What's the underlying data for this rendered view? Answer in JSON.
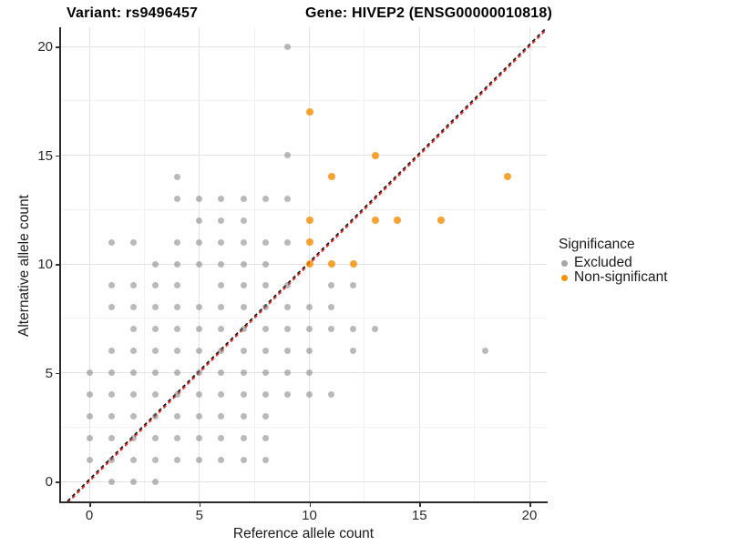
{
  "header": {
    "variant_title": "Variant: rs9496457",
    "gene_title": "Gene: HIVEP2 (ENSG00000010818)"
  },
  "axes": {
    "x": {
      "label": "Reference allele count",
      "ticks": [
        "0",
        "5",
        "10",
        "15",
        "20"
      ],
      "tick_values": [
        0,
        5,
        10,
        15,
        20
      ]
    },
    "y": {
      "label": "Alternative allele count",
      "ticks": [
        "0",
        "5",
        "10",
        "15",
        "20"
      ],
      "tick_values": [
        0,
        5,
        10,
        15,
        20
      ]
    }
  },
  "legend": {
    "title": "Significance",
    "items": [
      {
        "label": "Excluded",
        "color": "#a6a6a6"
      },
      {
        "label": "Non-significant",
        "color": "#f59300"
      }
    ]
  },
  "colors": {
    "excluded_point": "rgba(115,115,115,0.5)",
    "nonsignificant_point": "rgba(245,140,0,0.8)",
    "grid_major": "#e3e3e3",
    "grid_minor": "#f2f2f2",
    "abline_red": "#e03128",
    "abline_black": "#141414"
  },
  "chart_data": {
    "type": "scatter",
    "title_left": "Variant: rs9496457",
    "title_right": "Gene: HIVEP2 (ENSG00000010818)",
    "xlabel": "Reference allele count",
    "ylabel": "Alternative allele count",
    "xlim": [
      -1.33,
      20.8
    ],
    "ylim": [
      -0.95,
      20.9
    ],
    "grid": {
      "major": [
        0,
        5,
        10,
        15,
        20
      ],
      "minor": [
        2.5,
        7.5,
        12.5,
        17.5
      ]
    },
    "reference_line": {
      "type": "identity",
      "slope": 1,
      "intercept": 0,
      "style": "dashed"
    },
    "legend_position": "right",
    "series": [
      {
        "name": "Excluded",
        "points": [
          [
            1,
            0
          ],
          [
            2,
            0
          ],
          [
            3,
            0
          ],
          [
            0,
            1
          ],
          [
            1,
            1
          ],
          [
            2,
            1
          ],
          [
            3,
            1
          ],
          [
            4,
            1
          ],
          [
            5,
            1
          ],
          [
            6,
            1
          ],
          [
            7,
            1
          ],
          [
            8,
            1
          ],
          [
            0,
            2
          ],
          [
            1,
            2
          ],
          [
            2,
            2
          ],
          [
            3,
            2
          ],
          [
            4,
            2
          ],
          [
            5,
            2
          ],
          [
            6,
            2
          ],
          [
            7,
            2
          ],
          [
            8,
            2
          ],
          [
            0,
            3
          ],
          [
            1,
            3
          ],
          [
            2,
            3
          ],
          [
            3,
            3
          ],
          [
            4,
            3
          ],
          [
            5,
            3
          ],
          [
            6,
            3
          ],
          [
            7,
            3
          ],
          [
            8,
            3
          ],
          [
            0,
            4
          ],
          [
            1,
            4
          ],
          [
            2,
            4
          ],
          [
            3,
            4
          ],
          [
            4,
            4
          ],
          [
            5,
            4
          ],
          [
            6,
            4
          ],
          [
            7,
            4
          ],
          [
            8,
            4
          ],
          [
            9,
            4
          ],
          [
            10,
            4
          ],
          [
            11,
            4
          ],
          [
            0,
            5
          ],
          [
            1,
            5
          ],
          [
            2,
            5
          ],
          [
            3,
            5
          ],
          [
            4,
            5
          ],
          [
            5,
            5
          ],
          [
            6,
            5
          ],
          [
            7,
            5
          ],
          [
            8,
            5
          ],
          [
            9,
            5
          ],
          [
            10,
            5
          ],
          [
            1,
            6
          ],
          [
            2,
            6
          ],
          [
            3,
            6
          ],
          [
            4,
            6
          ],
          [
            5,
            6
          ],
          [
            6,
            6
          ],
          [
            7,
            6
          ],
          [
            8,
            6
          ],
          [
            9,
            6
          ],
          [
            10,
            6
          ],
          [
            12,
            6
          ],
          [
            18,
            6
          ],
          [
            2,
            7
          ],
          [
            3,
            7
          ],
          [
            4,
            7
          ],
          [
            5,
            7
          ],
          [
            6,
            7
          ],
          [
            7,
            7
          ],
          [
            8,
            7
          ],
          [
            9,
            7
          ],
          [
            10,
            7
          ],
          [
            11,
            7
          ],
          [
            12,
            7
          ],
          [
            13,
            7
          ],
          [
            1,
            8
          ],
          [
            2,
            8
          ],
          [
            3,
            8
          ],
          [
            4,
            8
          ],
          [
            5,
            8
          ],
          [
            6,
            8
          ],
          [
            7,
            8
          ],
          [
            8,
            8
          ],
          [
            9,
            8
          ],
          [
            10,
            8
          ],
          [
            11,
            8
          ],
          [
            1,
            9
          ],
          [
            2,
            9
          ],
          [
            3,
            9
          ],
          [
            4,
            9
          ],
          [
            6,
            9
          ],
          [
            7,
            9
          ],
          [
            8,
            9
          ],
          [
            9,
            9
          ],
          [
            11,
            9
          ],
          [
            12,
            9
          ],
          [
            3,
            10
          ],
          [
            4,
            10
          ],
          [
            5,
            10
          ],
          [
            6,
            10
          ],
          [
            7,
            10
          ],
          [
            8,
            10
          ],
          [
            1,
            11
          ],
          [
            2,
            11
          ],
          [
            4,
            11
          ],
          [
            5,
            11
          ],
          [
            6,
            11
          ],
          [
            7,
            11
          ],
          [
            8,
            11
          ],
          [
            9,
            11
          ],
          [
            5,
            12
          ],
          [
            6,
            12
          ],
          [
            7,
            12
          ],
          [
            4,
            13
          ],
          [
            5,
            13
          ],
          [
            6,
            13
          ],
          [
            7,
            13
          ],
          [
            8,
            13
          ],
          [
            9,
            13
          ],
          [
            4,
            14
          ],
          [
            9,
            15
          ],
          [
            9,
            20
          ]
        ]
      },
      {
        "name": "Non-significant",
        "points": [
          [
            10,
            10
          ],
          [
            11,
            10
          ],
          [
            12,
            10
          ],
          [
            10,
            11
          ],
          [
            10,
            12
          ],
          [
            13,
            12
          ],
          [
            14,
            12
          ],
          [
            16,
            12
          ],
          [
            11,
            14
          ],
          [
            19,
            14
          ],
          [
            13,
            15
          ],
          [
            10,
            17
          ]
        ]
      }
    ]
  }
}
